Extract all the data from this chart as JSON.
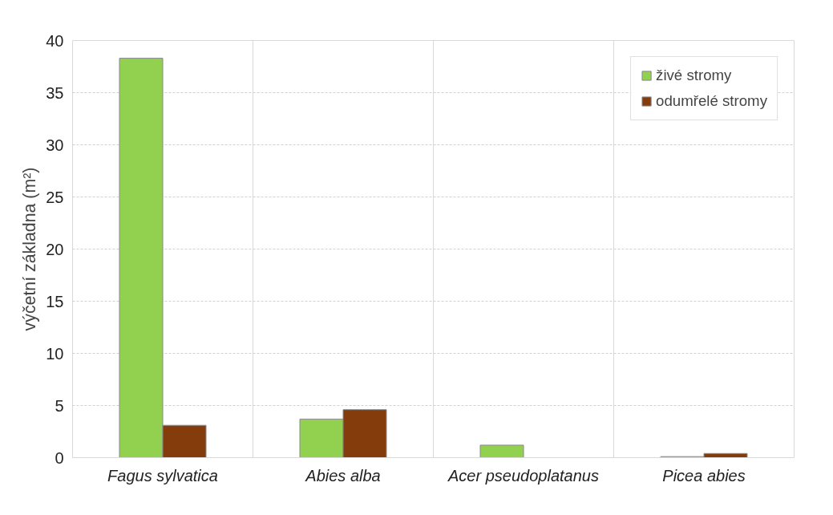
{
  "chart_data": {
    "type": "bar",
    "ylabel": "výčetní základna (m²)",
    "categories": [
      "Fagus sylvatica",
      "Abies alba",
      "Acer pseudoplatanus",
      "Picea abies"
    ],
    "series": [
      {
        "name": "živé stromy",
        "color": "#92d050",
        "values": [
          38.3,
          3.7,
          1.2,
          0.1
        ]
      },
      {
        "name": "odumřelé stromy",
        "color": "#843c0c",
        "values": [
          3.1,
          4.6,
          null,
          0.4
        ]
      }
    ],
    "ylim": [
      0,
      40
    ],
    "yticks": [
      0,
      5,
      10,
      15,
      20,
      25,
      30,
      35,
      40
    ],
    "grid": true,
    "legend": "top right"
  }
}
